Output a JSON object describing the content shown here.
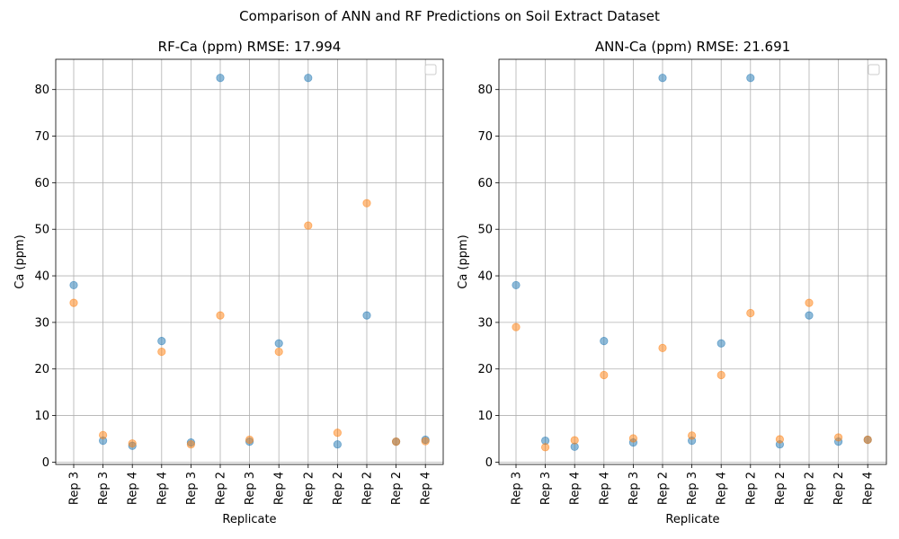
{
  "figure": {
    "suptitle": "Comparison of ANN and RF Predictions on Soil Extract Dataset"
  },
  "colors": {
    "actual": "#1f77b4",
    "predicted": "#ff7f0e",
    "grid": "#b0b0b0",
    "axes": "#000000"
  },
  "chart_data": [
    {
      "type": "scatter",
      "title": "RF-Ca (ppm) RMSE: 17.994",
      "xlabel": "Replicate",
      "ylabel": "Ca (ppm)",
      "categories": [
        "Rep 3",
        "Rep 3",
        "Rep 4",
        "Rep 4",
        "Rep 3",
        "Rep 2",
        "Rep 3",
        "Rep 4",
        "Rep 2",
        "Rep 2",
        "Rep 2",
        "Rep 2",
        "Rep 4"
      ],
      "ylim": [
        -0.5,
        86.5
      ],
      "yticks": [
        0,
        10,
        20,
        30,
        40,
        50,
        60,
        70,
        80
      ],
      "grid": true,
      "legend": "top-right (empty)",
      "series": [
        {
          "color": "#1f77b4",
          "values": [
            38.0,
            4.6,
            3.5,
            26.0,
            4.2,
            82.5,
            4.4,
            25.5,
            82.5,
            3.8,
            31.5,
            4.4,
            4.8
          ]
        },
        {
          "color": "#ff7f0e",
          "values": [
            34.2,
            5.8,
            4.0,
            23.7,
            3.8,
            31.5,
            4.8,
            23.7,
            50.8,
            6.3,
            55.6,
            4.4,
            4.5
          ]
        }
      ]
    },
    {
      "type": "scatter",
      "title": "ANN-Ca (ppm) RMSE: 21.691",
      "xlabel": "Replicate",
      "ylabel": "Ca (ppm)",
      "categories": [
        "Rep 3",
        "Rep 3",
        "Rep 4",
        "Rep 4",
        "Rep 3",
        "Rep 2",
        "Rep 3",
        "Rep 4",
        "Rep 2",
        "Rep 2",
        "Rep 2",
        "Rep 2",
        "Rep 4"
      ],
      "ylim": [
        -0.5,
        86.5
      ],
      "yticks": [
        0,
        10,
        20,
        30,
        40,
        50,
        60,
        70,
        80
      ],
      "grid": true,
      "legend": "top-right (empty)",
      "series": [
        {
          "color": "#1f77b4",
          "values": [
            38.0,
            4.6,
            3.3,
            26.0,
            4.2,
            82.5,
            4.6,
            25.5,
            82.5,
            3.8,
            31.5,
            4.4,
            4.8
          ]
        },
        {
          "color": "#ff7f0e",
          "values": [
            29.0,
            3.2,
            4.7,
            18.7,
            5.1,
            24.5,
            5.7,
            18.7,
            32.0,
            4.9,
            34.2,
            5.3,
            4.8
          ]
        }
      ]
    }
  ]
}
